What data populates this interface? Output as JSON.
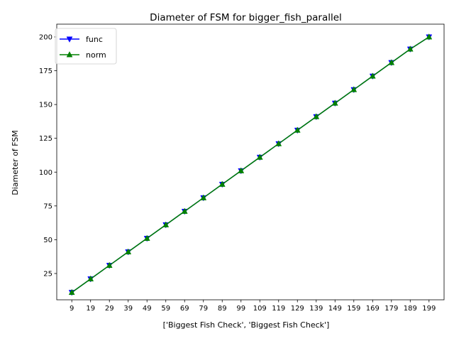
{
  "chart_data": {
    "type": "line",
    "title": "Diameter of FSM for bigger_fish_parallel",
    "xlabel": "['Biggest Fish Check', 'Biggest Fish Check']",
    "ylabel": "Diameter of FSM",
    "categories": [
      "9",
      "19",
      "29",
      "39",
      "49",
      "59",
      "69",
      "79",
      "89",
      "99",
      "109",
      "119",
      "129",
      "139",
      "149",
      "159",
      "169",
      "179",
      "189",
      "199"
    ],
    "ylim": [
      5.55,
      209.45
    ],
    "yticks": [
      25,
      50,
      75,
      100,
      125,
      150,
      175,
      200
    ],
    "grid": false,
    "legend_position": "top-left",
    "series": [
      {
        "name": "func",
        "color": "#0000ff",
        "marker": "triangle-down",
        "values": [
          11,
          21,
          31,
          41,
          51,
          61,
          71,
          81,
          91,
          101,
          111,
          121,
          131,
          141,
          151,
          161,
          171,
          181,
          191,
          200
        ]
      },
      {
        "name": "norm",
        "color": "#008000",
        "marker": "triangle-up",
        "values": [
          11,
          21,
          31,
          41,
          51,
          61,
          71,
          81,
          91,
          101,
          111,
          121,
          131,
          141,
          151,
          161,
          171,
          181,
          191,
          200
        ]
      }
    ]
  }
}
